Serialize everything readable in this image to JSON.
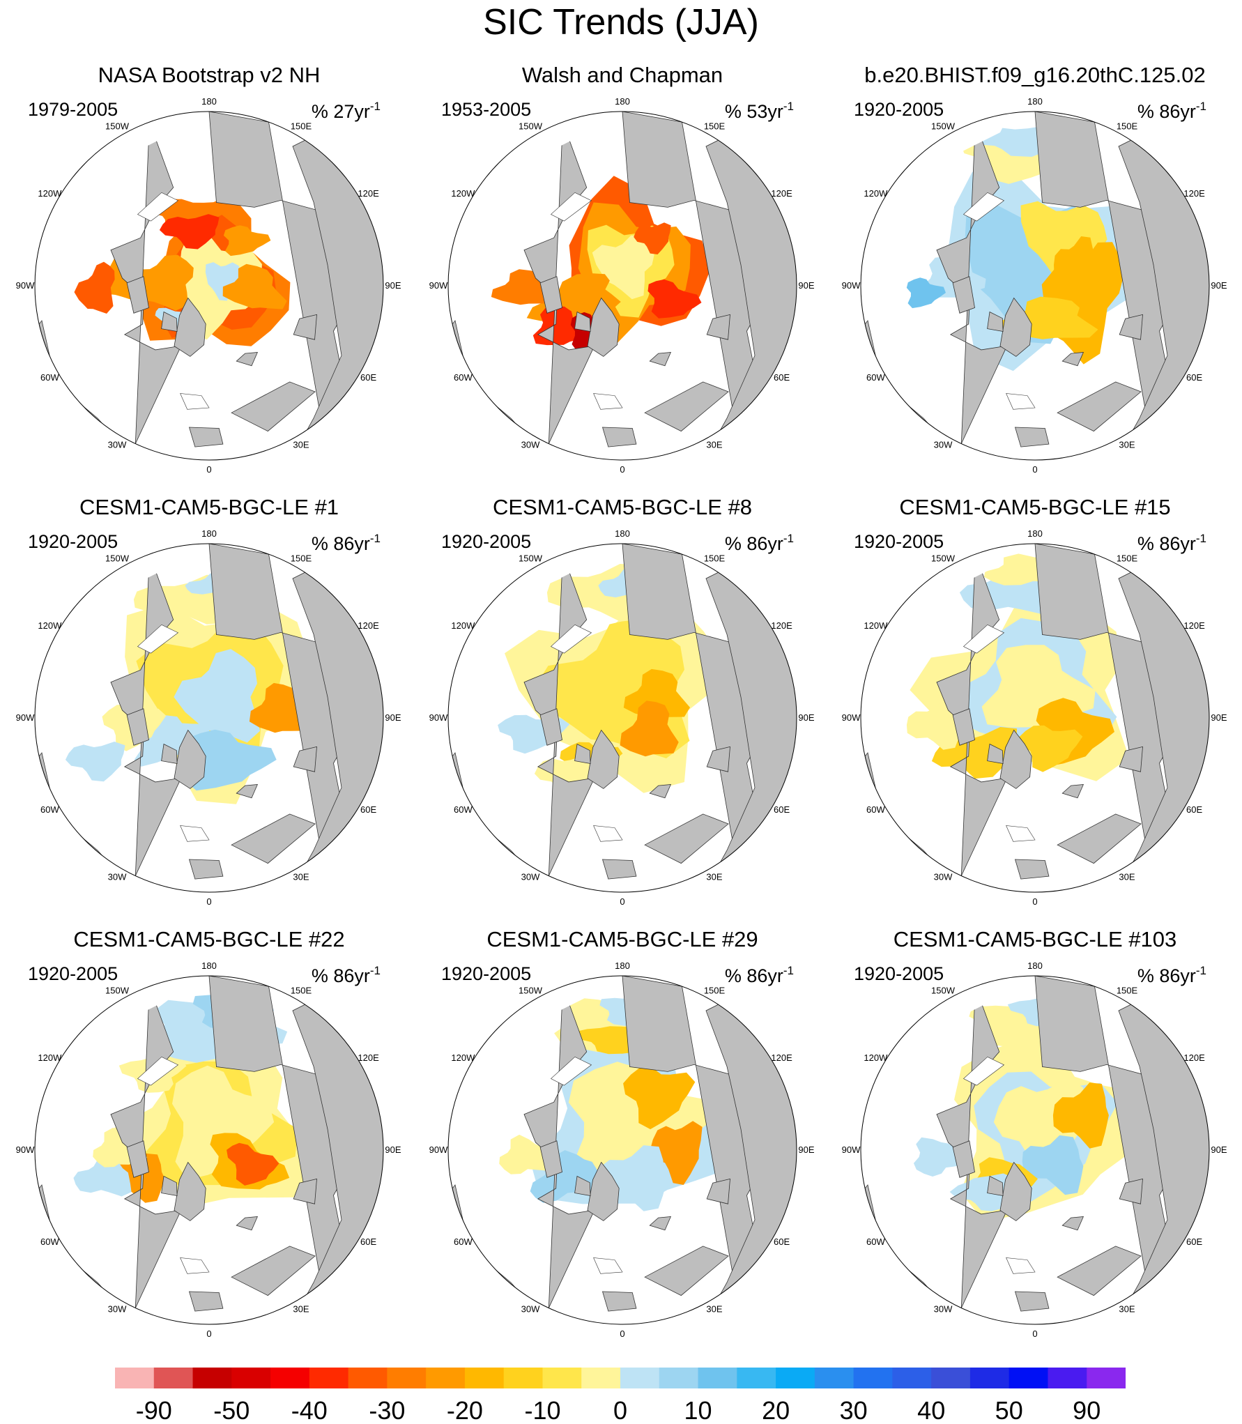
{
  "title": "SIC Trends (JJA)",
  "panels": [
    {
      "title": "NASA Bootstrap v2 NH",
      "period": "1979-2005",
      "units": "% 27yr",
      "units_exp": "-1",
      "pattern": "obs_nasa"
    },
    {
      "title": "Walsh and Chapman",
      "period": "1953-2005",
      "units": "% 53yr",
      "units_exp": "-1",
      "pattern": "obs_walsh"
    },
    {
      "title": "b.e20.BHIST.f09_g16.20thC.125.02",
      "period": "1920-2005",
      "units": "% 86yr",
      "units_exp": "-1",
      "pattern": "model_a"
    },
    {
      "title": "CESM1-CAM5-BGC-LE #1",
      "period": "1920-2005",
      "units": "% 86yr",
      "units_exp": "-1",
      "pattern": "model_b"
    },
    {
      "title": "CESM1-CAM5-BGC-LE #8",
      "period": "1920-2005",
      "units": "% 86yr",
      "units_exp": "-1",
      "pattern": "model_c"
    },
    {
      "title": "CESM1-CAM5-BGC-LE #15",
      "period": "1920-2005",
      "units": "% 86yr",
      "units_exp": "-1",
      "pattern": "model_d"
    },
    {
      "title": "CESM1-CAM5-BGC-LE #22",
      "period": "1920-2005",
      "units": "% 86yr",
      "units_exp": "-1",
      "pattern": "model_e"
    },
    {
      "title": "CESM1-CAM5-BGC-LE #29",
      "period": "1920-2005",
      "units": "% 86yr",
      "units_exp": "-1",
      "pattern": "model_f"
    },
    {
      "title": "CESM1-CAM5-BGC-LE #103",
      "period": "1920-2005",
      "units": "% 86yr",
      "units_exp": "-1",
      "pattern": "model_g"
    }
  ],
  "longitude_labels": [
    "180",
    "150E",
    "120E",
    "90E",
    "60E",
    "30E",
    "0",
    "30W",
    "60W",
    "90W",
    "120W",
    "150W"
  ],
  "colorbar": {
    "labels": [
      "-90",
      "-50",
      "-40",
      "-30",
      "-20",
      "-10",
      "0",
      "10",
      "20",
      "30",
      "40",
      "50",
      "90"
    ],
    "colors": [
      "#f9b4b4",
      "#e05555",
      "#c60000",
      "#d90000",
      "#f50000",
      "#ff2a00",
      "#ff5a00",
      "#ff7d00",
      "#ff9a00",
      "#ffb800",
      "#ffd21e",
      "#ffe64b",
      "#fff59a",
      "#bee3f5",
      "#9dd5f1",
      "#6fc3ee",
      "#38b8f2",
      "#0aaaf5",
      "#2a8fef",
      "#2272f0",
      "#2c5fe8",
      "#3a4fd8",
      "#1e2be6",
      "#0010f5",
      "#4a1bf0",
      "#8a28ee"
    ]
  },
  "colors": {
    "land": "#bebebe",
    "ocean": "#ffffff",
    "coast": "#333333"
  }
}
